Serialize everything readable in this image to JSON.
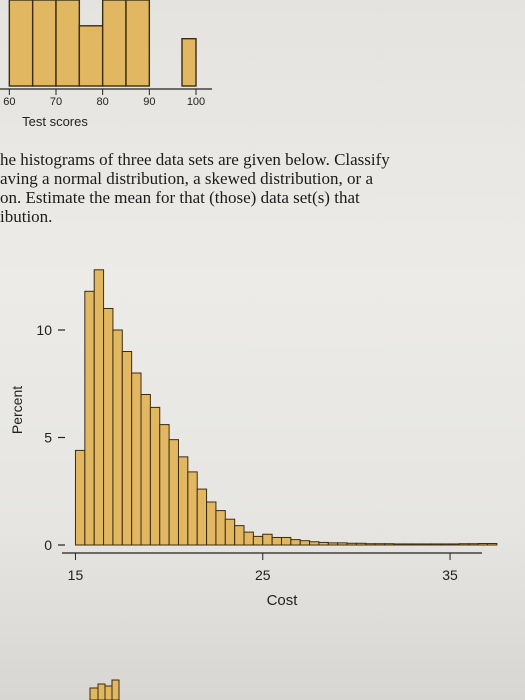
{
  "text": {
    "lines": [
      "he histograms of three data sets are given below. Classify",
      "aving a normal distribution, a skewed distribution, or a",
      "on. Estimate the mean for that (those) data set(s) that",
      "ibution."
    ]
  },
  "chart_data": [
    {
      "type": "bar",
      "xlabel": "Test scores",
      "ylabel": "",
      "xticks": [
        60,
        70,
        80,
        90,
        100
      ],
      "xlim": [
        58,
        103
      ],
      "bins": [
        {
          "from": 60,
          "to": 65,
          "value": 1.0
        },
        {
          "from": 65,
          "to": 70,
          "value": 1.0
        },
        {
          "from": 70,
          "to": 75,
          "value": 1.0
        },
        {
          "from": 75,
          "to": 80,
          "value": 0.7
        },
        {
          "from": 80,
          "to": 85,
          "value": 1.0
        },
        {
          "from": 85,
          "to": 90,
          "value": 1.0
        },
        {
          "from": 97,
          "to": 100,
          "value": 0.55
        }
      ]
    },
    {
      "type": "bar",
      "title": "",
      "xlabel": "Cost",
      "ylabel": "Percent",
      "xticks": [
        15,
        25,
        35
      ],
      "yticks": [
        0,
        5,
        10
      ],
      "xlim": [
        13.8,
        36.6
      ],
      "ylim": [
        0,
        14
      ],
      "bin_start": 15,
      "bin_width": 0.5,
      "values": [
        4.4,
        11.8,
        12.8,
        11.0,
        10.0,
        9.0,
        8.0,
        7.0,
        6.4,
        5.6,
        4.9,
        4.1,
        3.4,
        2.6,
        2.0,
        1.6,
        1.2,
        0.9,
        0.6,
        0.4,
        0.5,
        0.35,
        0.35,
        0.25,
        0.2,
        0.15,
        0.12,
        0.1,
        0.1,
        0.08,
        0.08,
        0.06,
        0.06,
        0.06,
        0.05,
        0.05,
        0.05,
        0.05,
        0.05,
        0.05,
        0.05,
        0.06,
        0.06,
        0.07,
        0.07
      ]
    }
  ]
}
